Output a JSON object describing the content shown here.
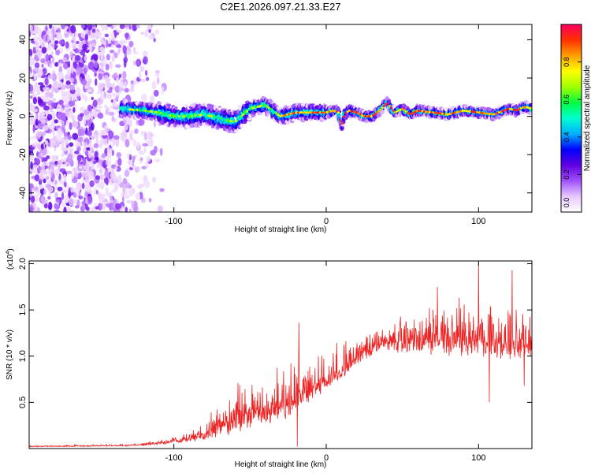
{
  "title": "C2E1.2026.097.21.33.E27",
  "chart_data": [
    {
      "type": "heatmap",
      "title": "C2E1.2026.097.21.33.E27",
      "xlabel": "Height of straight line (km)",
      "ylabel": "Frequency (Hz)",
      "xlim": [
        -195,
        135
      ],
      "ylim": [
        -50,
        48
      ],
      "x_ticks": [
        -100,
        0,
        100
      ],
      "x_tick_labels": [
        "-100",
        "0",
        "100"
      ],
      "y_ticks": [
        -40,
        -20,
        0,
        20,
        40
      ],
      "y_tick_labels": [
        "-40",
        "-20",
        "0",
        "20",
        "40"
      ],
      "colorbar": {
        "label": "Normalized spectral amplitude",
        "range": [
          0,
          1
        ],
        "ticks": [
          0,
          0.2,
          0.4,
          0.6,
          0.8
        ],
        "tick_labels": [
          "0.0",
          "0.2",
          "0.4",
          "0.6",
          "0.8"
        ],
        "colormap": [
          "#ffffff",
          "#e8c8ff",
          "#a050ff",
          "#6000e0",
          "#0000ff",
          "#00b0ff",
          "#00ffd0",
          "#00ff40",
          "#a0ff00",
          "#ffff00",
          "#ffa000",
          "#ff3000",
          "#ff0060"
        ]
      },
      "ridge_center": [
        {
          "x": -135,
          "f": 4
        },
        {
          "x": -120,
          "f": 3
        },
        {
          "x": -110,
          "f": 2
        },
        {
          "x": -100,
          "f": 0
        },
        {
          "x": -90,
          "f": 0
        },
        {
          "x": -80,
          "f": 1
        },
        {
          "x": -70,
          "f": -1
        },
        {
          "x": -60,
          "f": -3
        },
        {
          "x": -50,
          "f": 4
        },
        {
          "x": -45,
          "f": 5
        },
        {
          "x": -40,
          "f": 6
        },
        {
          "x": -35,
          "f": 3
        },
        {
          "x": -30,
          "f": 0
        },
        {
          "x": -25,
          "f": 1
        },
        {
          "x": -20,
          "f": 2
        },
        {
          "x": -10,
          "f": 2
        },
        {
          "x": 0,
          "f": 2
        },
        {
          "x": 5,
          "f": 3
        },
        {
          "x": 8,
          "f": 2
        },
        {
          "x": 10,
          "f": -5
        },
        {
          "x": 12,
          "f": 1
        },
        {
          "x": 15,
          "f": 3
        },
        {
          "x": 20,
          "f": 2
        },
        {
          "x": 25,
          "f": 0
        },
        {
          "x": 30,
          "f": 0
        },
        {
          "x": 35,
          "f": 3
        },
        {
          "x": 40,
          "f": 7
        },
        {
          "x": 45,
          "f": 2
        },
        {
          "x": 50,
          "f": 4
        },
        {
          "x": 55,
          "f": 1
        },
        {
          "x": 60,
          "f": 3
        },
        {
          "x": 70,
          "f": 2
        },
        {
          "x": 80,
          "f": 1
        },
        {
          "x": 90,
          "f": 3
        },
        {
          "x": 100,
          "f": 2
        },
        {
          "x": 110,
          "f": 1
        },
        {
          "x": 120,
          "f": 4
        },
        {
          "x": 125,
          "f": 3
        },
        {
          "x": 130,
          "f": 5
        },
        {
          "x": 135,
          "f": 4
        }
      ],
      "noise_region_x": [
        -195,
        -125
      ],
      "signal_start_x": -135
    },
    {
      "type": "line",
      "xlabel": "Height of straight line (km)",
      "ylabel": "SNR (10 * v/v)",
      "yscale_label": "(x10",
      "yscale_exponent": "4",
      "yscale_suffix": ")",
      "xlim": [
        -195,
        135
      ],
      "ylim": [
        0,
        2.03
      ],
      "x_ticks": [
        -100,
        0,
        100
      ],
      "x_tick_labels": [
        "-100",
        "0",
        "100"
      ],
      "y_ticks": [
        0.5,
        1.0,
        1.5,
        2.0
      ],
      "y_tick_labels": [
        "0.5",
        "1.0",
        "1.5",
        "2.0"
      ],
      "series_color": "#ee2222",
      "envelope": [
        {
          "x": -195,
          "base": 0.02,
          "spread": 0.02
        },
        {
          "x": -130,
          "base": 0.03,
          "spread": 0.02
        },
        {
          "x": -110,
          "base": 0.05,
          "spread": 0.05
        },
        {
          "x": -95,
          "base": 0.08,
          "spread": 0.1
        },
        {
          "x": -80,
          "base": 0.12,
          "spread": 0.2
        },
        {
          "x": -70,
          "base": 0.2,
          "spread": 0.45
        },
        {
          "x": -60,
          "base": 0.25,
          "spread": 0.55
        },
        {
          "x": -50,
          "base": 0.3,
          "spread": 0.6
        },
        {
          "x": -40,
          "base": 0.35,
          "spread": 0.55
        },
        {
          "x": -25,
          "base": 0.4,
          "spread": 0.6
        },
        {
          "x": -15,
          "base": 0.55,
          "spread": 0.55
        },
        {
          "x": 0,
          "base": 0.7,
          "spread": 0.4
        },
        {
          "x": 10,
          "base": 0.8,
          "spread": 0.4
        },
        {
          "x": 20,
          "base": 0.95,
          "spread": 0.4
        },
        {
          "x": 30,
          "base": 1.05,
          "spread": 0.4
        },
        {
          "x": 40,
          "base": 1.12,
          "spread": 0.4
        },
        {
          "x": 60,
          "base": 1.1,
          "spread": 0.5
        },
        {
          "x": 80,
          "base": 1.1,
          "spread": 0.55
        },
        {
          "x": 100,
          "base": 1.1,
          "spread": 0.6
        },
        {
          "x": 120,
          "base": 1.05,
          "spread": 0.6
        },
        {
          "x": 135,
          "base": 1.1,
          "spread": 0.6
        }
      ],
      "spikes": [
        {
          "x": -18,
          "y": 1.36
        },
        {
          "x": -19,
          "y": 0.02
        },
        {
          "x": 100,
          "y": 2.02
        },
        {
          "x": 122,
          "y": 1.93
        },
        {
          "x": 107,
          "y": 0.5
        },
        {
          "x": 130,
          "y": 0.68
        },
        {
          "x": 73,
          "y": 1.75
        }
      ]
    }
  ]
}
